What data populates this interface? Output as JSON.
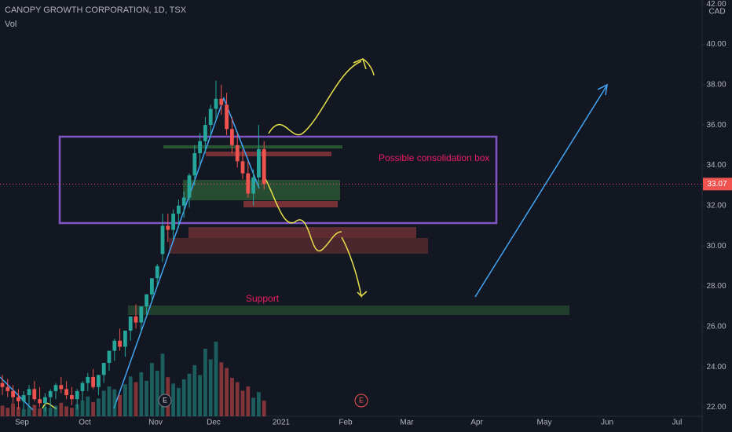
{
  "chart_data": {
    "type": "candlestick",
    "title": "CANOPY GROWTH CORPORATION, 1D, TSX",
    "indicator": "Vol",
    "currency": "CAD",
    "last_price": 33.07,
    "annotations": [
      "Possible consolidation box",
      "Support"
    ],
    "earnings_markers": [
      "E",
      "E"
    ],
    "x_labels": [
      "Sep",
      "Oct",
      "Nov",
      "Dec",
      "2021",
      "Feb",
      "Mar",
      "Apr",
      "May",
      "Jun",
      "Jul"
    ],
    "ylim": [
      21.55,
      42.2
    ],
    "yticks": [
      {
        "value": 22,
        "label": "22.00"
      },
      {
        "value": 24,
        "label": "24.00"
      },
      {
        "value": 26,
        "label": "26.00"
      },
      {
        "value": 28,
        "label": "28.00"
      },
      {
        "value": 30,
        "label": "30.00"
      },
      {
        "value": 32,
        "label": "32.00"
      },
      {
        "value": 34,
        "label": "34.00"
      },
      {
        "value": 36,
        "label": "36.00"
      },
      {
        "value": 38,
        "label": "38.00"
      },
      {
        "value": 40,
        "label": "40.00"
      },
      {
        "value": 42,
        "label": "42.00"
      }
    ],
    "up_color": "#26a69a",
    "down_color": "#ef5350",
    "open": [
      23.2,
      23.0,
      22.8,
      22.5,
      22.3,
      22.6,
      22.9,
      22.4,
      22.2,
      22.5,
      22.8,
      23.1,
      22.9,
      22.6,
      22.4,
      22.8,
      23.2,
      23.5,
      23.0,
      23.6,
      24.2,
      24.8,
      25.3,
      25.0,
      25.8,
      26.5,
      26.2,
      27.0,
      27.6,
      28.4,
      29.6,
      31.0,
      30.8,
      31.6,
      32.0,
      32.4,
      33.5,
      34.6,
      35.2,
      36.0,
      36.8,
      37.3,
      37.0,
      35.8,
      35.0,
      34.2,
      33.6,
      32.6,
      33.4,
      34.8
    ],
    "high": [
      23.6,
      23.4,
      23.1,
      22.9,
      22.8,
      23.1,
      23.3,
      23.0,
      22.7,
      22.9,
      23.2,
      23.5,
      23.3,
      23.0,
      22.9,
      23.3,
      23.7,
      23.9,
      23.6,
      24.1,
      24.8,
      25.4,
      25.9,
      25.6,
      26.4,
      27.1,
      26.8,
      27.6,
      28.2,
      29.1,
      31.6,
      31.6,
      31.8,
      32.3,
      32.7,
      33.6,
      35.0,
      35.6,
      36.4,
      37.0,
      38.2,
      38.0,
      37.6,
      36.4,
      35.6,
      34.8,
      34.2,
      33.8,
      36.0,
      35.2
    ],
    "low": [
      22.6,
      22.5,
      22.2,
      21.9,
      21.9,
      22.1,
      22.3,
      22.0,
      21.8,
      22.0,
      22.4,
      22.7,
      22.4,
      22.1,
      21.9,
      22.3,
      22.8,
      22.9,
      22.6,
      23.2,
      23.8,
      24.3,
      24.8,
      24.5,
      25.3,
      25.9,
      25.7,
      26.5,
      27.2,
      28.0,
      29.2,
      30.2,
      30.3,
      30.9,
      31.4,
      31.9,
      33.0,
      34.0,
      34.6,
      35.4,
      36.2,
      36.5,
      35.5,
      34.6,
      33.9,
      33.3,
      32.4,
      32.0,
      32.9,
      32.8
    ],
    "close": [
      23.0,
      22.8,
      22.5,
      22.3,
      22.6,
      22.9,
      22.4,
      22.2,
      22.5,
      22.8,
      23.1,
      22.9,
      22.6,
      22.4,
      22.8,
      23.2,
      23.5,
      23.0,
      23.6,
      24.2,
      24.8,
      25.3,
      25.0,
      25.8,
      26.5,
      26.2,
      27.0,
      27.6,
      28.4,
      29.0,
      31.0,
      30.8,
      31.6,
      32.0,
      32.4,
      33.5,
      34.6,
      35.2,
      36.0,
      36.8,
      37.3,
      37.0,
      35.8,
      35.0,
      34.2,
      33.6,
      32.6,
      33.4,
      34.8,
      33.07
    ],
    "volume": [
      1.5,
      1.2,
      1.8,
      1.3,
      1.0,
      1.4,
      1.6,
      1.1,
      1.3,
      1.2,
      1.5,
      1.9,
      1.4,
      1.2,
      1.7,
      2.2,
      2.8,
      2.0,
      2.5,
      3.6,
      4.2,
      3.8,
      3.0,
      4.5,
      5.6,
      4.8,
      6.2,
      5.0,
      7.5,
      6.4,
      8.8,
      5.5,
      4.6,
      4.0,
      5.2,
      6.0,
      7.2,
      5.8,
      9.5,
      8.0,
      10.5,
      7.6,
      6.8,
      5.4,
      4.8,
      3.6,
      4.2,
      2.6,
      3.4,
      2.2
    ]
  }
}
